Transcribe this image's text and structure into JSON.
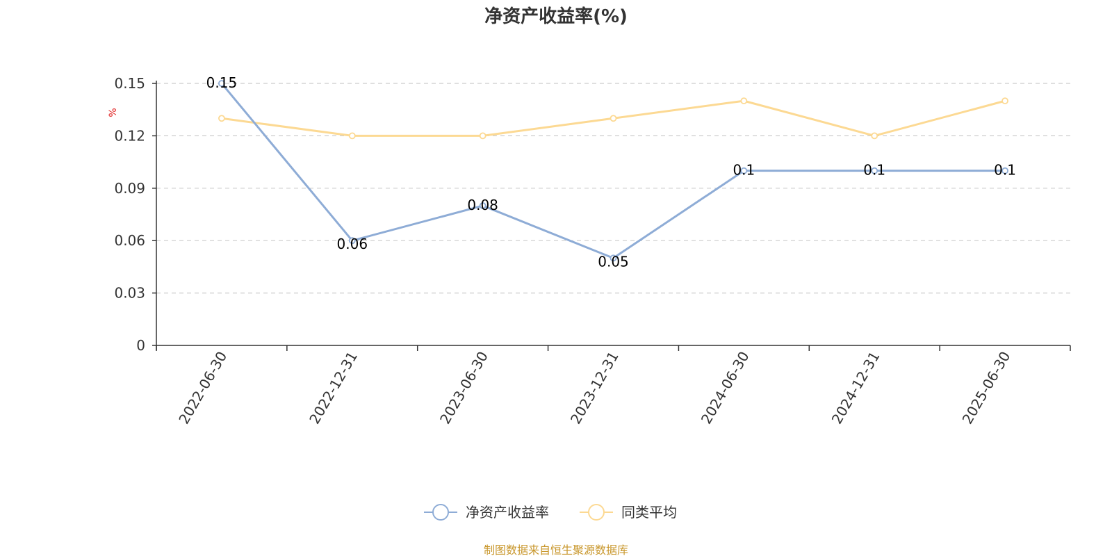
{
  "chart_data": {
    "type": "line",
    "title": "净资产收益率(%)",
    "ylabel": "%",
    "xlabel": "",
    "categories": [
      "2022-06-30",
      "2022-12-31",
      "2023-06-30",
      "2023-12-31",
      "2024-06-30",
      "2024-12-31",
      "2025-06-30"
    ],
    "series": [
      {
        "name": "净资产收益率",
        "values": [
          0.15,
          0.06,
          0.08,
          0.05,
          0.1,
          0.1,
          0.1
        ],
        "data_labels": [
          "0.15",
          "0.06",
          "0.08",
          "0.05",
          "0.1",
          "0.1",
          "0.1"
        ],
        "color": "#8eacd6"
      },
      {
        "name": "同类平均",
        "values": [
          0.13,
          0.12,
          0.12,
          0.13,
          0.14,
          0.12,
          0.14
        ],
        "color": "#fcd993"
      }
    ],
    "ylim": [
      0,
      0.15
    ],
    "yticks": [
      "0",
      "0.03",
      "0.06",
      "0.09",
      "0.12",
      "0.15"
    ],
    "ytick_values": [
      0,
      0.03,
      0.06,
      0.09,
      0.12,
      0.15
    ],
    "grid": true,
    "legend_position": "bottom-center"
  },
  "source": "制图数据来自恒生聚源数据库"
}
